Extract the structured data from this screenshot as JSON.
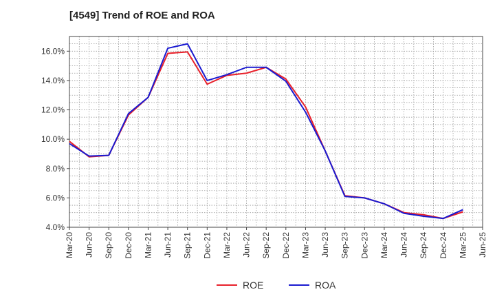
{
  "chart_data": {
    "type": "line",
    "title": "[4549]  Trend of ROE and ROA",
    "xlabel": "",
    "ylabel": "",
    "x": [
      "Mar-20",
      "Jun-20",
      "Sep-20",
      "Dec-20",
      "Mar-21",
      "Jun-21",
      "Sep-21",
      "Dec-21",
      "Mar-22",
      "Jun-22",
      "Sep-22",
      "Dec-22",
      "Mar-23",
      "Jun-23",
      "Sep-23",
      "Dec-23",
      "Mar-24",
      "Jun-24",
      "Sep-24",
      "Dec-24",
      "Mar-25",
      "Jun-25"
    ],
    "ylim": [
      4.0,
      17.0
    ],
    "yticks": [
      4.0,
      6.0,
      8.0,
      10.0,
      12.0,
      14.0,
      16.0
    ],
    "ytick_labels": [
      "4.0%",
      "6.0%",
      "8.0%",
      "10.0%",
      "12.0%",
      "14.0%",
      "16.0%"
    ],
    "grid": true,
    "legend_position": "bottom-center",
    "series": [
      {
        "name": "ROE",
        "color": "#e8202a",
        "values": [
          9.85,
          8.8,
          8.9,
          11.65,
          12.85,
          15.85,
          15.95,
          13.75,
          14.35,
          14.5,
          14.9,
          14.1,
          12.2,
          9.2,
          6.15,
          6.0,
          5.6,
          5.0,
          4.85,
          4.6,
          5.05,
          null
        ]
      },
      {
        "name": "ROA",
        "color": "#1a1ad0",
        "values": [
          9.7,
          8.85,
          8.9,
          11.75,
          12.85,
          16.2,
          16.5,
          14.0,
          14.4,
          14.9,
          14.9,
          13.95,
          11.85,
          9.2,
          6.1,
          6.0,
          5.6,
          4.95,
          4.75,
          4.6,
          5.2,
          null
        ]
      }
    ]
  }
}
